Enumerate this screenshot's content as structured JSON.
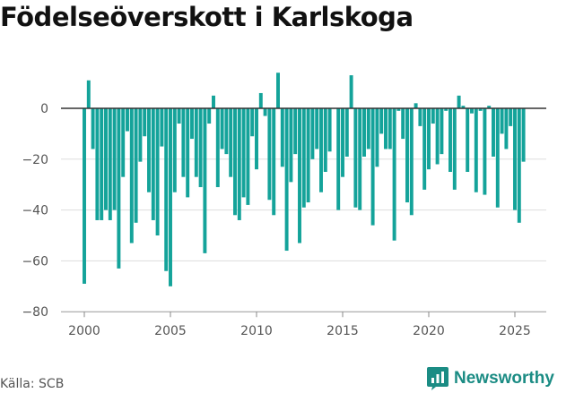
{
  "title": "Födelseöverskott i Karlskoga",
  "source": "Källa: SCB",
  "brand": "Newsworthy",
  "colors": {
    "bar": "#14a39a",
    "brand": "#1b8c84",
    "grid": "#dddddd",
    "zero": "#333333",
    "axis": "#555555"
  },
  "chart_data": {
    "type": "bar",
    "title": "Födelseöverskott i Karlskoga",
    "xlabel": "",
    "ylabel": "",
    "ylim": [
      -80,
      15
    ],
    "xlim": [
      1999.0,
      2026.8
    ],
    "yticks": [
      0,
      -20,
      -40,
      -60,
      -80
    ],
    "ytick_labels": [
      "0",
      "−20",
      "−40",
      "−60",
      "−80"
    ],
    "xticks": [
      2000,
      2005,
      2010,
      2015,
      2020,
      2025
    ],
    "xtick_labels": [
      "2000",
      "2005",
      "2010",
      "2015",
      "2020",
      "2025"
    ],
    "grid": true,
    "legend": "none",
    "series": [
      {
        "x": [
          "2000-01",
          "2000-02",
          "2000-03",
          "2000-04",
          "2001-01",
          "2001-02",
          "2001-03",
          "2001-04",
          "2002-01",
          "2002-02",
          "2002-03",
          "2002-04",
          "2003-01",
          "2003-02",
          "2003-03",
          "2003-04",
          "2004-01",
          "2004-02",
          "2004-03",
          "2004-04",
          "2005-01",
          "2005-02",
          "2005-03",
          "2005-04",
          "2006-01",
          "2006-02",
          "2006-03",
          "2006-04",
          "2007-01",
          "2007-02",
          "2007-03",
          "2007-04",
          "2008-01",
          "2008-02",
          "2008-03",
          "2008-04",
          "2009-01",
          "2009-02",
          "2009-03",
          "2009-04",
          "2010-01",
          "2010-02",
          "2010-03",
          "2010-04",
          "2011-01",
          "2011-02",
          "2011-03",
          "2011-04",
          "2012-01",
          "2012-02",
          "2012-03",
          "2012-04",
          "2013-01",
          "2013-02",
          "2013-03",
          "2013-04",
          "2014-01",
          "2014-02",
          "2014-03",
          "2014-04",
          "2015-01",
          "2015-02",
          "2015-03",
          "2015-04",
          "2016-01",
          "2016-02",
          "2016-03",
          "2016-04",
          "2017-01",
          "2017-02",
          "2017-03",
          "2017-04",
          "2018-01",
          "2018-02",
          "2018-03",
          "2018-04",
          "2019-01",
          "2019-02",
          "2019-03",
          "2019-04",
          "2020-01",
          "2020-02",
          "2020-03",
          "2020-04",
          "2021-01",
          "2021-02",
          "2021-03",
          "2021-04",
          "2022-01",
          "2022-02",
          "2022-03",
          "2022-04",
          "2023-01",
          "2023-02",
          "2023-03",
          "2023-04",
          "2024-01",
          "2024-02",
          "2024-03",
          "2024-04",
          "2025-01",
          "2025-02",
          "2025-03"
        ],
        "values": [
          -69,
          11,
          -16,
          -44,
          -44,
          -40,
          -44,
          -40,
          -63,
          -27,
          -9,
          -53,
          -45,
          -21,
          -11,
          -33,
          -44,
          -50,
          -15,
          -64,
          -70,
          -33,
          -6,
          -27,
          -35,
          -12,
          -27,
          -31,
          -57,
          -6,
          5,
          -31,
          -16,
          -18,
          -27,
          -42,
          -44,
          -35,
          -38,
          -11,
          -24,
          6,
          -3,
          -36,
          -42,
          14,
          -23,
          -56,
          -29,
          -18,
          -53,
          -39,
          -37,
          -20,
          -16,
          -33,
          -25,
          -17,
          0,
          -40,
          -27,
          -19,
          13,
          -39,
          -40,
          -19,
          -16,
          -46,
          -23,
          -10,
          -16,
          -16,
          -52,
          -1,
          -12,
          -37,
          -42,
          2,
          -7,
          -32,
          -24,
          -6,
          -22,
          -18,
          -1,
          -25,
          -32,
          5,
          1,
          -25,
          -2,
          -33,
          -1,
          -34,
          1,
          -19,
          -39,
          -10,
          -16,
          -7,
          -40,
          -45,
          -21
        ]
      }
    ]
  }
}
